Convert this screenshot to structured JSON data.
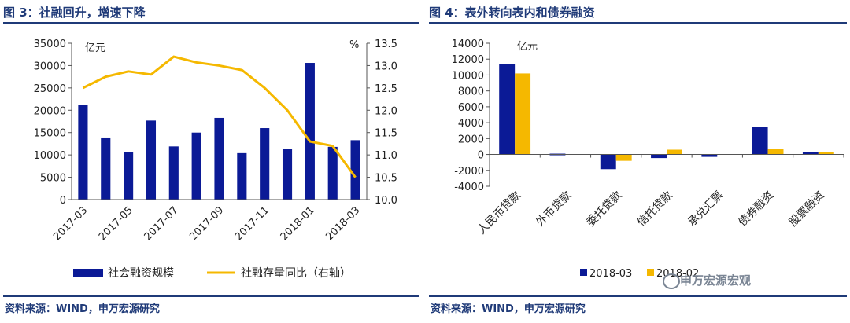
{
  "left": {
    "title": "图 3：社融回升，增速下降",
    "unit_left": "亿元",
    "unit_right": "%",
    "legend_bar": "社会融资规模",
    "legend_line": "社融存量同比（右轴）",
    "source": "资料来源：WIND，申万宏源研究"
  },
  "right": {
    "title": "图 4：表外转向表内和债券融资",
    "unit": "亿元",
    "source": "资料来源：WIND，申万宏源研究"
  },
  "watermark": "申万宏源宏观",
  "colors": {
    "navy": "#0b1a96",
    "yellow": "#f5b800",
    "title": "#1f3a78"
  },
  "chart_data": [
    {
      "type": "bar+line",
      "x": [
        "2017-03",
        "2017-04",
        "2017-05",
        "2017-06",
        "2017-07",
        "2017-08",
        "2017-09",
        "2017-10",
        "2017-11",
        "2017-12",
        "2018-01",
        "2018-02",
        "2018-03"
      ],
      "x_tick_labels": [
        "2017-03",
        "2017-05",
        "2017-07",
        "2017-09",
        "2017-11",
        "2018-01",
        "2018-03"
      ],
      "series": [
        {
          "name": "社会融资规模",
          "axis": "left",
          "type": "bar",
          "values": [
            21200,
            13900,
            10600,
            17700,
            11900,
            15000,
            18300,
            10400,
            16000,
            11400,
            30600,
            11800,
            13300
          ]
        },
        {
          "name": "社融存量同比（右轴）",
          "axis": "right",
          "type": "line",
          "values": [
            12.5,
            12.75,
            12.87,
            12.8,
            13.2,
            13.07,
            13.0,
            12.9,
            12.5,
            12.0,
            11.3,
            11.2,
            10.5
          ]
        }
      ],
      "ylim_left": [
        0,
        35000
      ],
      "yticks_left": [
        0,
        5000,
        10000,
        15000,
        20000,
        25000,
        30000,
        35000
      ],
      "ylim_right": [
        10.0,
        13.5
      ],
      "yticks_right": [
        "10.0",
        "10.5",
        "11.0",
        "11.5",
        "12.0",
        "12.5",
        "13.0",
        "13.5"
      ],
      "grid": false
    },
    {
      "type": "bar",
      "categories": [
        "人民币贷款",
        "外币贷款",
        "委托贷款",
        "信托贷款",
        "承兑汇票",
        "债券融资",
        "股票融资"
      ],
      "series": [
        {
          "name": "2018-03",
          "values": [
            11400,
            100,
            -1850,
            -450,
            -300,
            3450,
            300
          ]
        },
        {
          "name": "2018-02",
          "values": [
            10200,
            0,
            -800,
            600,
            0,
            700,
            300
          ]
        }
      ],
      "ylim": [
        -4000,
        14000
      ],
      "yticks": [
        -4000,
        -2000,
        0,
        2000,
        4000,
        6000,
        8000,
        10000,
        12000,
        14000
      ],
      "grid": false
    }
  ]
}
